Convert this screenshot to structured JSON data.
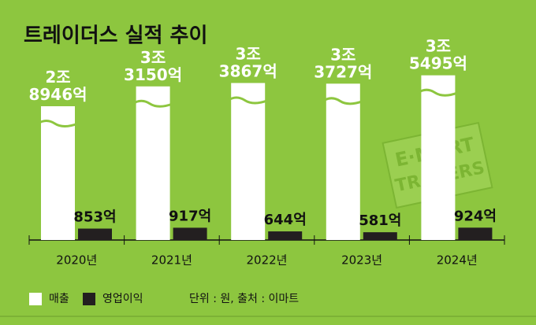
{
  "chart_data": {
    "type": "bar",
    "title": "트레이더스 실적 추이",
    "categories": [
      "2020년",
      "2021년",
      "2022년",
      "2023년",
      "2024년"
    ],
    "series": [
      {
        "name": "매출",
        "color": "#ffffff",
        "values": [
          28946,
          33150,
          33867,
          33727,
          35495
        ],
        "value_labels": [
          "2조\n8946억",
          "3조\n3150억",
          "3조\n3867억",
          "3조\n3727억",
          "3조\n5495억"
        ]
      },
      {
        "name": "영업이익",
        "color": "#231f20",
        "values": [
          853,
          917,
          644,
          581,
          924
        ],
        "value_labels": [
          "853억",
          "917억",
          "644억",
          "581억",
          "924억"
        ]
      }
    ],
    "axis_break": true,
    "note": "단위 : 원, 출처 : 이마트",
    "watermark": {
      "line1": "E·MART",
      "line2": "TRADERS"
    }
  }
}
